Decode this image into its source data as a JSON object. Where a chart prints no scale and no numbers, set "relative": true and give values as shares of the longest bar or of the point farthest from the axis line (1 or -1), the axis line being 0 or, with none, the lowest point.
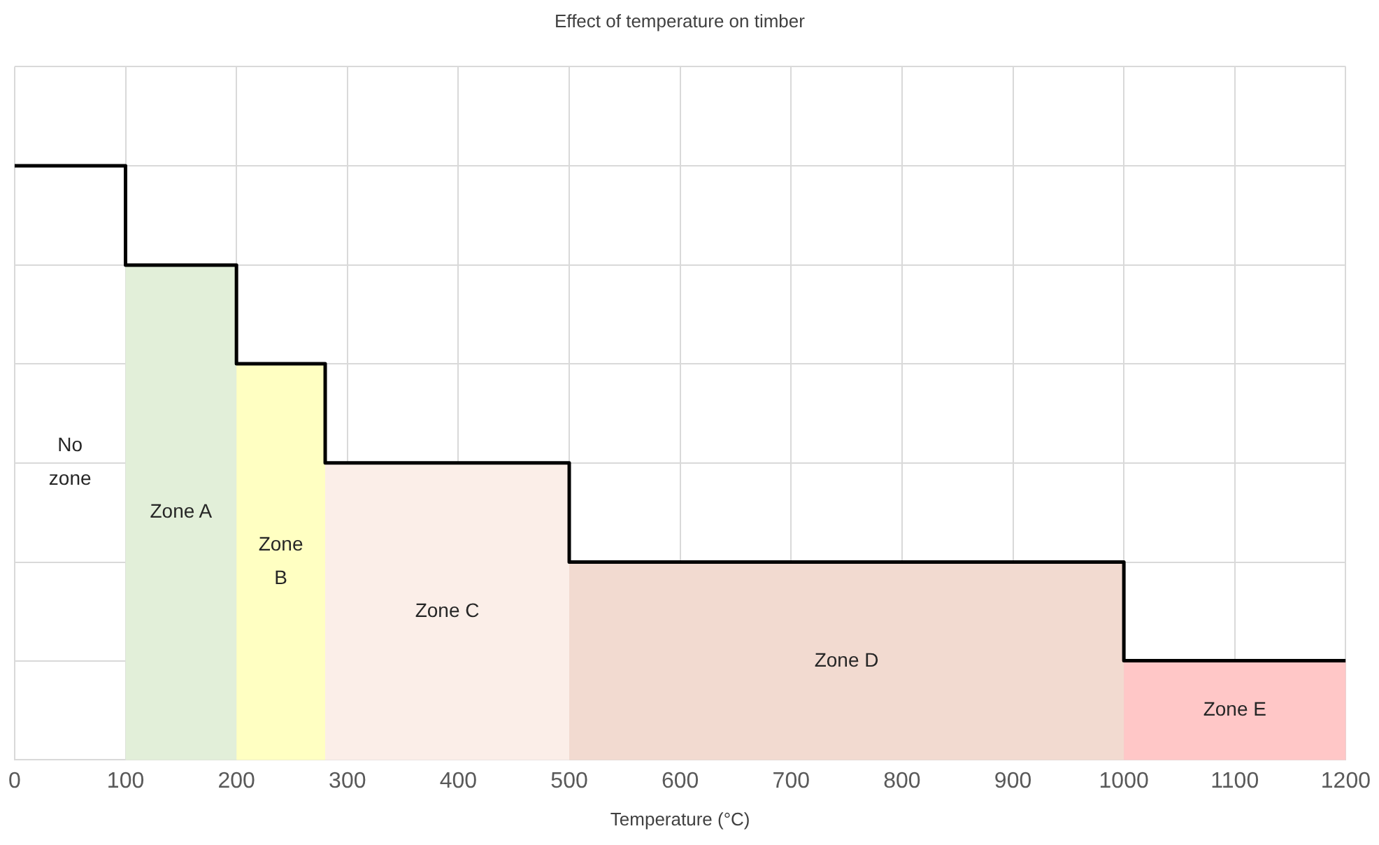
{
  "chart_data": {
    "type": "step",
    "title": "Effect of temperature on timber",
    "xlabel": "Temperature (°C)",
    "relative": true,
    "x": [
      0,
      100,
      200,
      280,
      500,
      1000,
      1200
    ],
    "series": [
      {
        "color": "#000000",
        "values": [
          1,
          0.833,
          0.667,
          0.5,
          0.333,
          0.167,
          0.167
        ]
      }
    ],
    "xlim": [
      0,
      1200
    ],
    "xticks": [
      0,
      100,
      200,
      300,
      400,
      500,
      600,
      700,
      800,
      900,
      1000,
      1100,
      1200
    ],
    "bands": [
      {
        "axis": "x",
        "from": 100,
        "to": 200,
        "label": "Zone A",
        "color": "#e2efd9"
      },
      {
        "axis": "x",
        "from": 200,
        "to": 280,
        "label": "Zone B",
        "color": "#ffffc2"
      },
      {
        "axis": "x",
        "from": 280,
        "to": 500,
        "label": "Zone C",
        "color": "#fbeee8"
      },
      {
        "axis": "x",
        "from": 500,
        "to": 1000,
        "label": "Zone D",
        "color": "#f2dad0"
      },
      {
        "axis": "x",
        "from": 1000,
        "to": 1200,
        "label": "Zone E",
        "color": "#ffc7c7"
      }
    ],
    "annotations": [
      "No zone"
    ],
    "grid": true,
    "legend": false,
    "line_style": "solid"
  }
}
